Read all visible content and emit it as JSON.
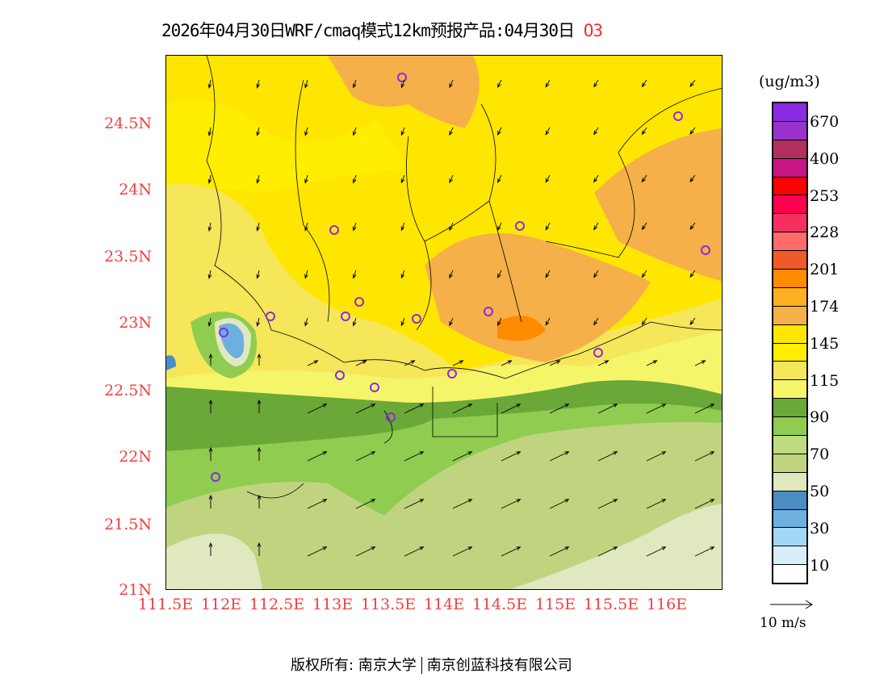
{
  "title": {
    "text": "2026年04月30日WRF/cmaq模式12km预报产品:04月30日",
    "species": "O3"
  },
  "lat_labels": [
    "24.5N",
    "24N",
    "23.5N",
    "23N",
    "22.5N",
    "22N",
    "21.5N",
    "21N"
  ],
  "lon_labels": [
    "111.5E",
    "112E",
    "112.5E",
    "113E",
    "113.5E",
    "114E",
    "114.5E",
    "115E",
    "115.5E",
    "116E"
  ],
  "legend": {
    "unit": "(ug/m3)",
    "colors": [
      "#8a2be2",
      "#9932cc",
      "#b03060",
      "#c71585",
      "#ff0000",
      "#ff0050",
      "#f53060",
      "#ff6a6a",
      "#f05a28",
      "#ff8c00",
      "#ffb020",
      "#f5b04a",
      "#ffe600",
      "#ffee00",
      "#f5e65a",
      "#f5f56a",
      "#6aa838",
      "#90cc50",
      "#c0dc80",
      "#c0d480",
      "#e0e8c0",
      "#4a8cc4",
      "#6cb0e0",
      "#a0d8f5",
      "#d8eef8",
      "#ffffff"
    ],
    "labels": [
      "670",
      "400",
      "253",
      "228",
      "201",
      "174",
      "145",
      "115",
      "90",
      "70",
      "50",
      "30",
      "10"
    ]
  },
  "wind_reference": "10 m/s",
  "footer": {
    "copyright": "版权所有: 南京大学",
    "company": "南京创蓝科技有限公司"
  }
}
